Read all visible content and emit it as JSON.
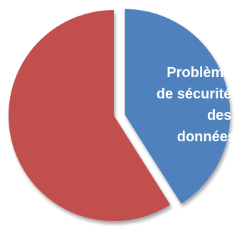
{
  "chart_data": {
    "type": "pie",
    "title": "",
    "slices": [
      {
        "label_lines": [
          "Problème",
          "de sécurité",
          "des",
          "données"
        ],
        "value": 41,
        "color": "#4F81BD"
      },
      {
        "label_lines": [],
        "value": 59,
        "color": "#C0504D"
      }
    ],
    "start_angle_deg": 0,
    "direction": "clockwise",
    "exploded_slice_index": 0
  }
}
